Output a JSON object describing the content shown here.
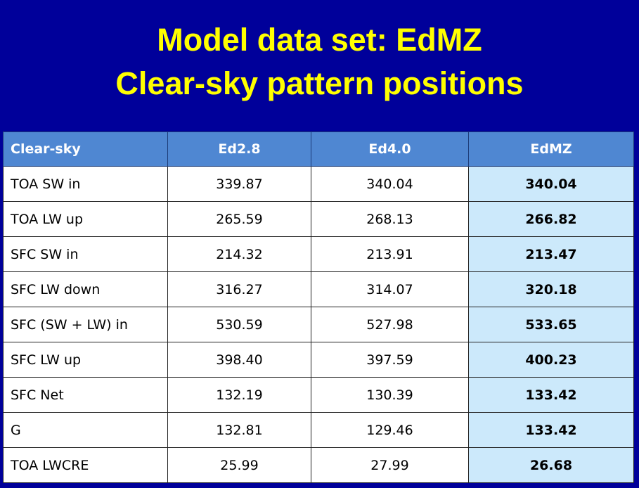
{
  "title": {
    "line1": "Model data set: EdMZ",
    "line2": "Clear-sky pattern positions"
  },
  "table": {
    "headers": [
      "Clear-sky",
      "Ed2.8",
      "Ed4.0",
      "EdMZ"
    ],
    "rows": [
      [
        "TOA SW in",
        "339.87",
        "340.04",
        "340.04"
      ],
      [
        "TOA LW up",
        "265.59",
        "268.13",
        "266.82"
      ],
      [
        "SFC SW in",
        "214.32",
        "213.91",
        "213.47"
      ],
      [
        "SFC LW down",
        "316.27",
        "314.07",
        "320.18"
      ],
      [
        "SFC (SW + LW) in",
        "530.59",
        "527.98",
        "533.65"
      ],
      [
        "SFC LW up",
        "398.40",
        "397.59",
        "400.23"
      ],
      [
        "SFC Net",
        "132.19",
        "130.39",
        "133.42"
      ],
      [
        "G",
        "132.81",
        "129.46",
        "133.42"
      ],
      [
        "TOA LWCRE",
        "25.99",
        "27.99",
        "26.68"
      ]
    ]
  },
  "colors": {
    "background": "#00009a",
    "title": "#ffff00",
    "header": "#4f87d2",
    "highlight_column": "#cce9fb"
  }
}
